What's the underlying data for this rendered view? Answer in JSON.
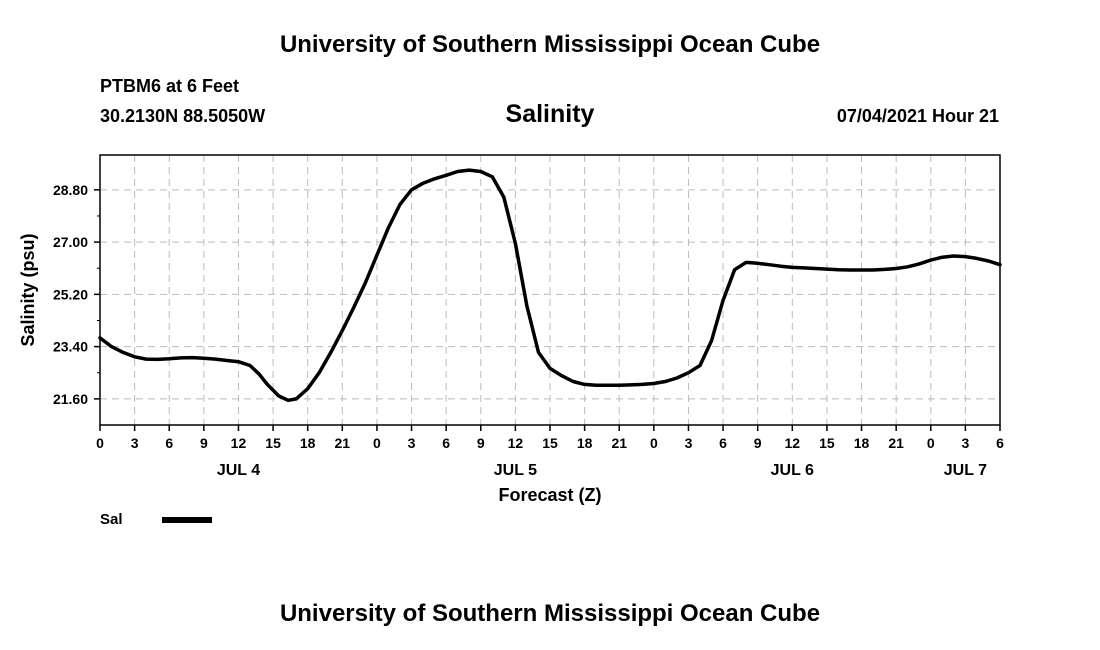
{
  "header": {
    "title": "University of Southern Mississippi Ocean Cube",
    "station": "PTBM6 at 6 Feet",
    "coordinates": "30.2130N  88.5050W",
    "variable": "Salinity",
    "datetime": "07/04/2021 Hour 21"
  },
  "footer": {
    "title": "University of Southern Mississippi Ocean Cube"
  },
  "chart_data": {
    "type": "line",
    "title": "Salinity",
    "xlabel": "Forecast (Z)",
    "ylabel": "Salinity (psu)",
    "xlim": [
      0,
      78
    ],
    "ylim": [
      20.7,
      30.0
    ],
    "y_ticks": [
      21.6,
      23.4,
      25.2,
      27.0,
      28.8
    ],
    "y_tick_labels": [
      "21.60",
      "23.40",
      "25.20",
      "27.00",
      "28.80"
    ],
    "x_ticks": [
      0,
      3,
      6,
      9,
      12,
      15,
      18,
      21,
      24,
      27,
      30,
      33,
      36,
      39,
      42,
      45,
      48,
      51,
      54,
      57,
      60,
      63,
      66,
      69,
      72,
      75,
      78
    ],
    "x_tick_labels": [
      "0",
      "3",
      "6",
      "9",
      "12",
      "15",
      "18",
      "21",
      "0",
      "3",
      "6",
      "9",
      "12",
      "15",
      "18",
      "21",
      "0",
      "3",
      "6",
      "9",
      "12",
      "15",
      "18",
      "21",
      "0",
      "3",
      "6"
    ],
    "date_labels": [
      {
        "label": "JUL 4",
        "x": 12
      },
      {
        "label": "JUL 5",
        "x": 36
      },
      {
        "label": "JUL 6",
        "x": 60
      },
      {
        "label": "JUL 7",
        "x": 75
      }
    ],
    "grid": true,
    "legend": [
      {
        "name": "Sal",
        "position": "bottom-left"
      }
    ],
    "series": [
      {
        "name": "Sal",
        "x": [
          0,
          1,
          2,
          3,
          4,
          5,
          6,
          7,
          8,
          9,
          10,
          11,
          12,
          13,
          13.8,
          14.5,
          15.5,
          16.3,
          17,
          18,
          19,
          20,
          21,
          22,
          23,
          24,
          25,
          26,
          27,
          28,
          29,
          30,
          31,
          32,
          33,
          34,
          35,
          36,
          37,
          38,
          39,
          40,
          41,
          42,
          43,
          44,
          45,
          46,
          47,
          48,
          49,
          50,
          51,
          52,
          53,
          54,
          55,
          56,
          57,
          58,
          59,
          60,
          61,
          62,
          63,
          64,
          65,
          66,
          67,
          68,
          69,
          70,
          71,
          72,
          73,
          74,
          75,
          76,
          77,
          78
        ],
        "values": [
          23.7,
          23.4,
          23.2,
          23.05,
          22.97,
          22.96,
          22.98,
          23.01,
          23.02,
          23.0,
          22.97,
          22.92,
          22.88,
          22.75,
          22.45,
          22.1,
          21.7,
          21.55,
          21.6,
          21.95,
          22.5,
          23.2,
          23.95,
          24.75,
          25.6,
          26.55,
          27.5,
          28.3,
          28.8,
          29.03,
          29.18,
          29.3,
          29.43,
          29.48,
          29.43,
          29.25,
          28.55,
          26.95,
          24.8,
          23.2,
          22.65,
          22.4,
          22.2,
          22.1,
          22.07,
          22.07,
          22.07,
          22.08,
          22.1,
          22.13,
          22.2,
          22.32,
          22.5,
          22.75,
          23.6,
          25.0,
          26.05,
          26.3,
          26.27,
          26.22,
          26.17,
          26.13,
          26.11,
          26.09,
          26.07,
          26.05,
          26.04,
          26.04,
          26.04,
          26.06,
          26.09,
          26.15,
          26.25,
          26.38,
          26.48,
          26.52,
          26.5,
          26.44,
          26.35,
          26.22
        ]
      }
    ]
  }
}
